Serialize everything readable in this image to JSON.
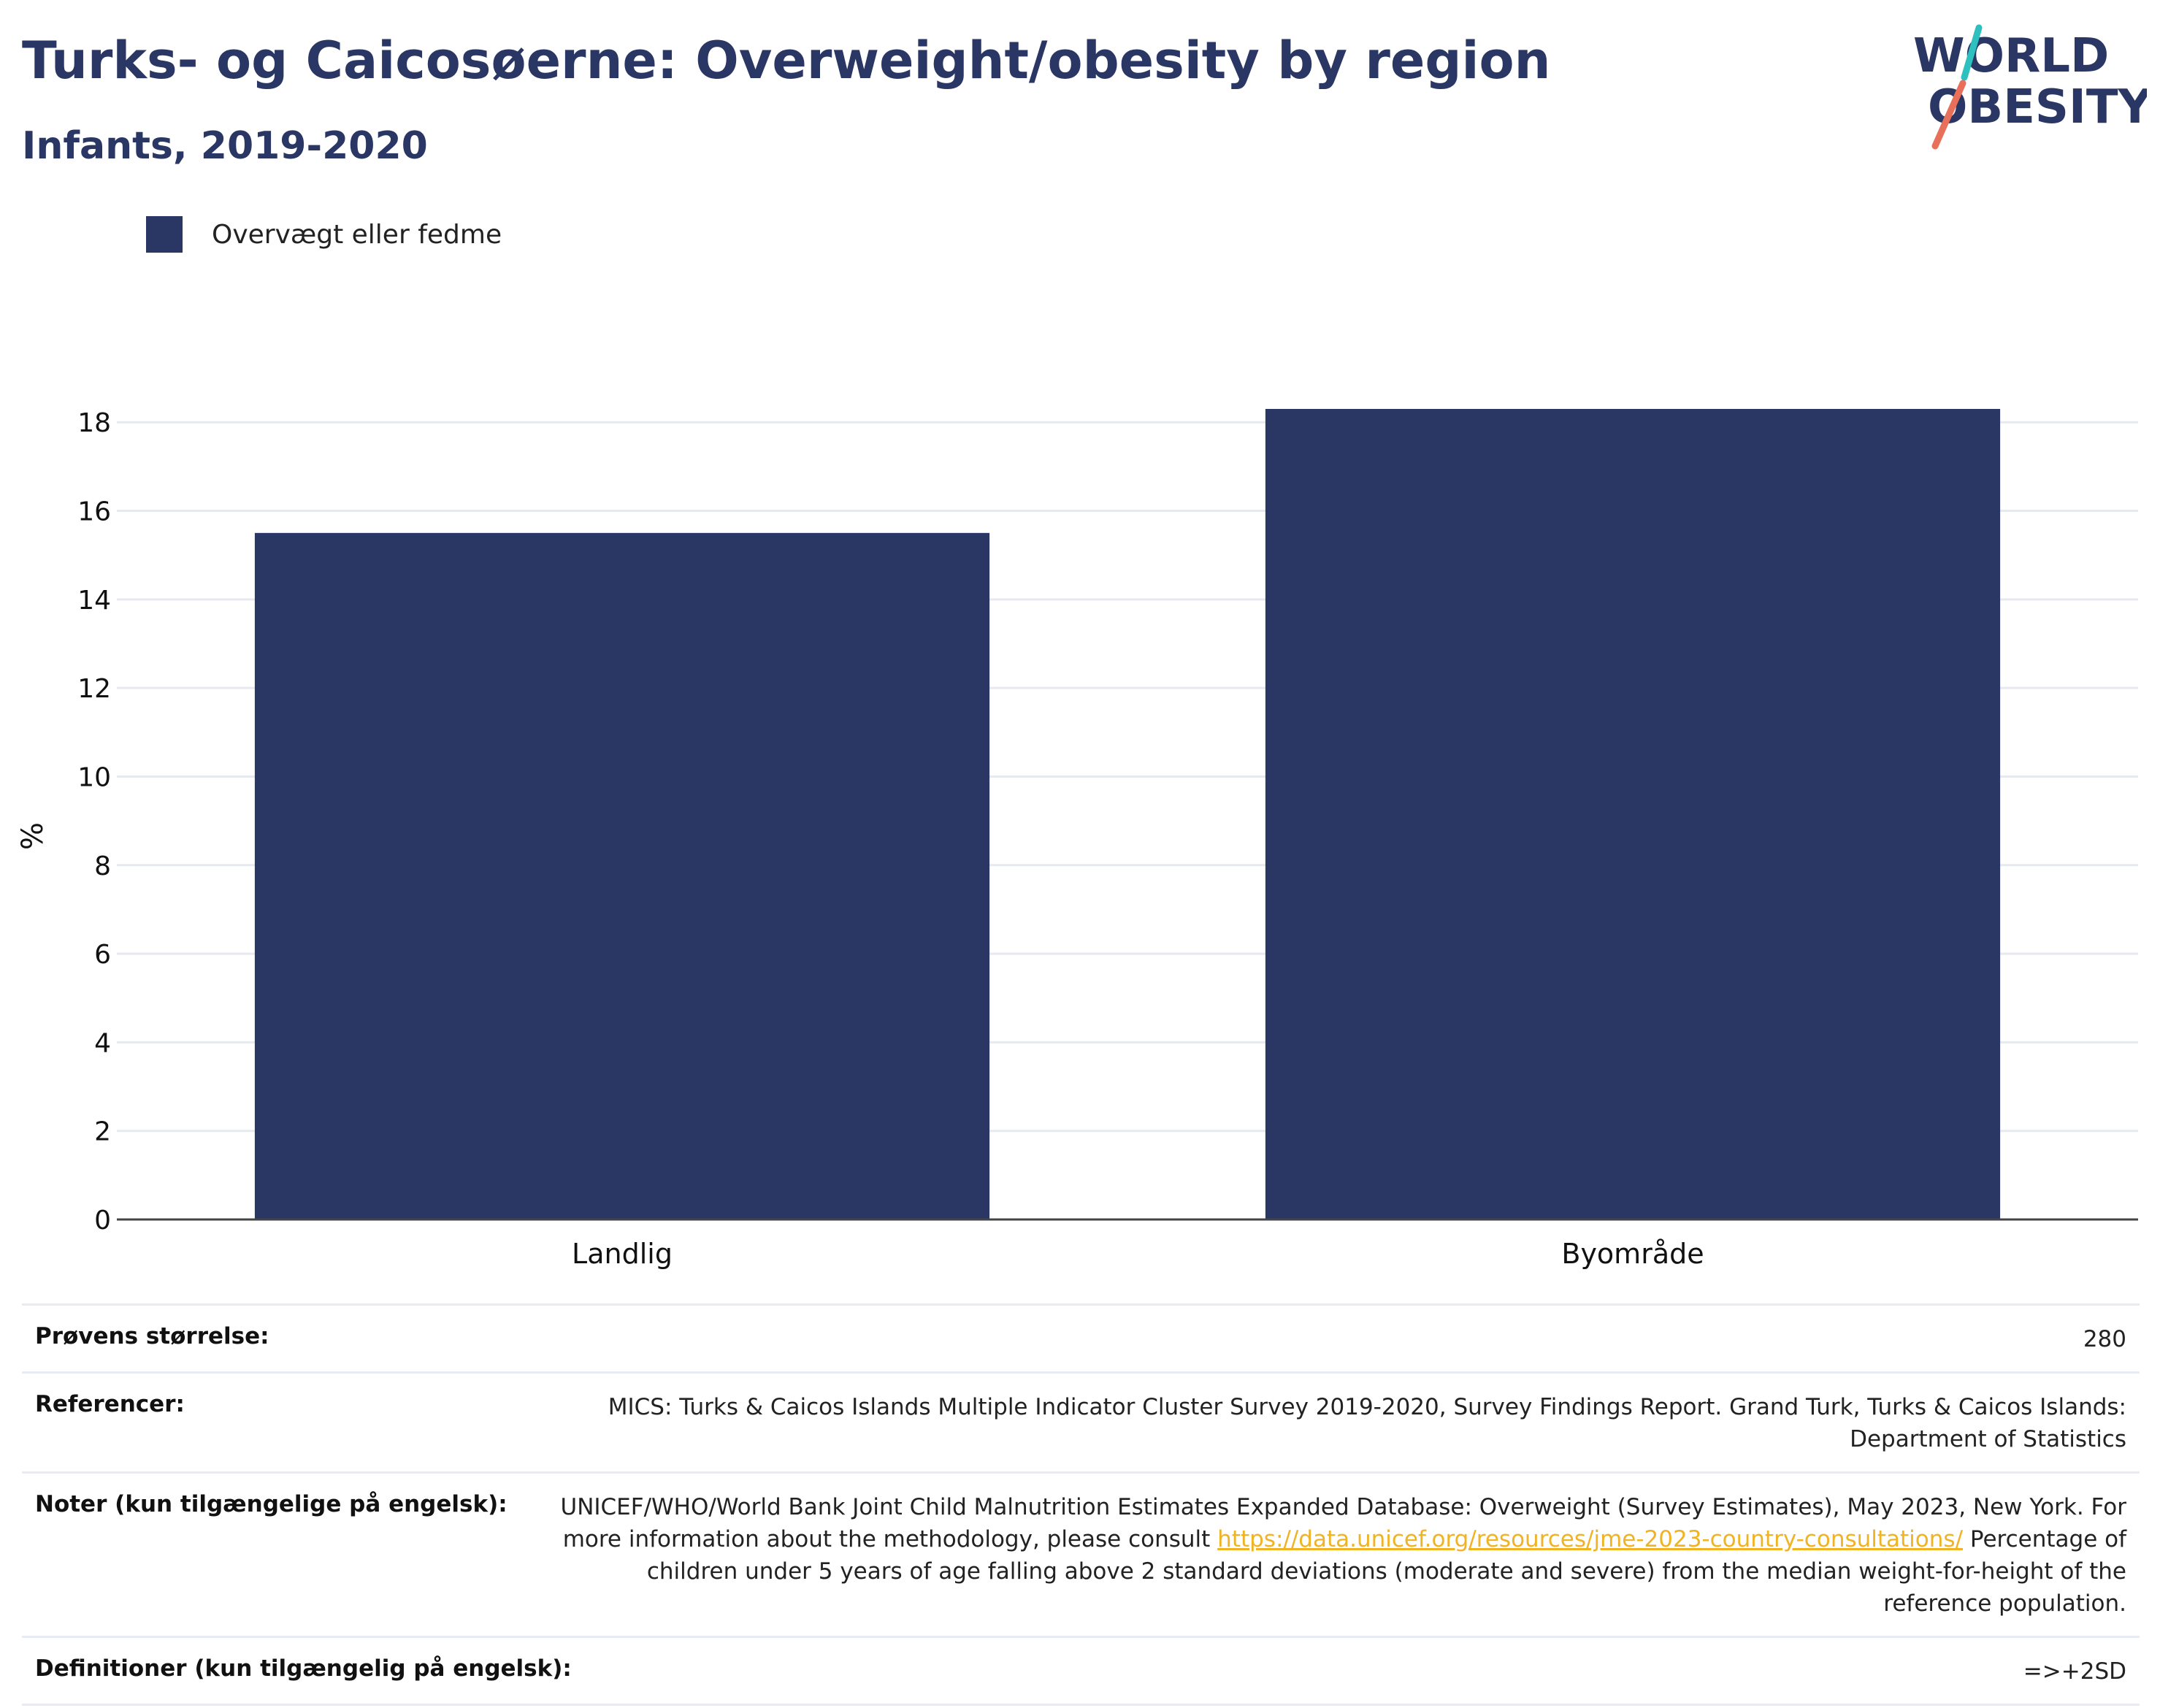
{
  "header": {
    "title": "Turks- og Caicosøerne: Overweight/obesity by region",
    "subtitle": "Infants, 2019-2020"
  },
  "logo": {
    "line1": "WORLD",
    "line2": "OBESITY",
    "accent_teal": "#2ebfbf",
    "accent_red": "#e8705a",
    "text_color": "#2a3663"
  },
  "legend": {
    "items": [
      {
        "label": "Overvægt eller fedme",
        "color": "#2a3663"
      }
    ]
  },
  "chart_data": {
    "type": "bar",
    "categories": [
      "Landlig",
      "Byområde"
    ],
    "series": [
      {
        "name": "Overvægt eller fedme",
        "values": [
          15.5,
          18.3
        ],
        "color": "#2a3663"
      }
    ],
    "title": "",
    "xlabel": "",
    "ylabel": "%",
    "ylim": [
      0,
      18.3
    ],
    "yticks": [
      0,
      2,
      4,
      6,
      8,
      10,
      12,
      14,
      16,
      18
    ],
    "grid": true,
    "legend_position": "top-left"
  },
  "info": {
    "sample_size": {
      "label": "Prøvens størrelse:",
      "value": "280"
    },
    "references": {
      "label": "Referencer:",
      "value": "MICS: Turks & Caicos Islands Multiple Indicator Cluster Survey 2019-2020, Survey Findings Report. Grand Turk, Turks & Caicos Islands: Department of Statistics"
    },
    "notes": {
      "label": "Noter (kun tilgængelige på engelsk):",
      "text_before": "UNICEF/WHO/World Bank Joint Child Malnutrition Estimates Expanded Database: Overweight (Survey Estimates), May 2023, New York. For more information about the methodology, please consult ",
      "link": "https://data.unicef.org/resources/jme-2023-country-consultations/",
      "text_after": " Percentage of children under 5 years of age falling above 2 standard deviations (moderate and severe) from the median weight-for-height of the reference population."
    },
    "definitions": {
      "label": "Definitioner (kun tilgængelig på engelsk):",
      "value": "=>+2SD"
    }
  }
}
